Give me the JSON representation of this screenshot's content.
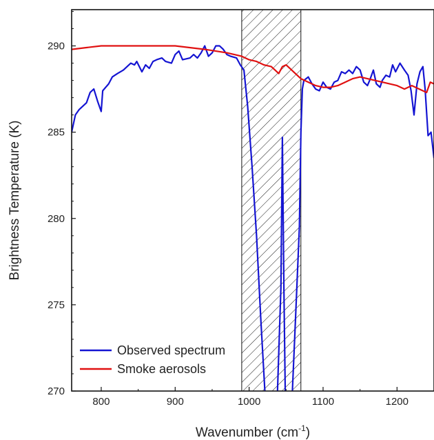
{
  "chart_data": {
    "type": "line",
    "xlabel": "Wavenumber (cm",
    "xlabel_sup": "-1",
    "xlabel_close": ")",
    "ylabel": "Brightness Temperature (K)",
    "xlim": [
      760,
      1250
    ],
    "ylim": [
      270,
      292.1
    ],
    "x_ticks": [
      800,
      900,
      1000,
      1100,
      1200
    ],
    "y_ticks": [
      270,
      275,
      280,
      285,
      290
    ],
    "x_tick_labels": [
      "800",
      "900",
      "1000",
      "1100",
      "1200"
    ],
    "y_tick_labels": [
      "270",
      "275",
      "280",
      "285",
      "290"
    ],
    "grid": false,
    "legend_position": "bottom-left",
    "shaded_band": {
      "x0": 990,
      "x1": 1070,
      "pattern": "diagonal-hatch"
    },
    "series": [
      {
        "name": "Observed spectrum",
        "color": "#1414d2",
        "points": [
          [
            760,
            285.0
          ],
          [
            765,
            286.0
          ],
          [
            770,
            286.3
          ],
          [
            780,
            286.7
          ],
          [
            785,
            287.3
          ],
          [
            790,
            287.5
          ],
          [
            795,
            286.8
          ],
          [
            800,
            286.2
          ],
          [
            802,
            287.4
          ],
          [
            810,
            287.8
          ],
          [
            815,
            288.2
          ],
          [
            822,
            288.4
          ],
          [
            830,
            288.6
          ],
          [
            835,
            288.8
          ],
          [
            840,
            289.0
          ],
          [
            845,
            288.9
          ],
          [
            848,
            289.1
          ],
          [
            855,
            288.5
          ],
          [
            860,
            288.9
          ],
          [
            865,
            288.7
          ],
          [
            870,
            289.1
          ],
          [
            875,
            289.2
          ],
          [
            882,
            289.3
          ],
          [
            887,
            289.1
          ],
          [
            895,
            289.0
          ],
          [
            900,
            289.5
          ],
          [
            905,
            289.7
          ],
          [
            910,
            289.2
          ],
          [
            920,
            289.3
          ],
          [
            925,
            289.5
          ],
          [
            930,
            289.3
          ],
          [
            935,
            289.6
          ],
          [
            940,
            290.0
          ],
          [
            945,
            289.4
          ],
          [
            950,
            289.6
          ],
          [
            955,
            290.0
          ],
          [
            960,
            290.0
          ],
          [
            965,
            289.8
          ],
          [
            970,
            289.5
          ],
          [
            975,
            289.4
          ],
          [
            983,
            289.3
          ],
          [
            988,
            288.9
          ],
          [
            993,
            288.6
          ],
          [
            998,
            286.5
          ],
          [
            1004,
            283.0
          ],
          [
            1010,
            279.0
          ],
          [
            1016,
            274.0
          ],
          [
            1022,
            269.5
          ],
          [
            1038,
            269.5
          ],
          [
            1043,
            276.0
          ],
          [
            1045,
            284.7
          ],
          [
            1047,
            276.0
          ],
          [
            1049,
            269.5
          ],
          [
            1058,
            269.5
          ],
          [
            1063,
            274.5
          ],
          [
            1068,
            279.5
          ],
          [
            1070,
            285.0
          ],
          [
            1072,
            287.5
          ],
          [
            1074,
            288.0
          ],
          [
            1080,
            288.2
          ],
          [
            1085,
            287.8
          ],
          [
            1090,
            287.5
          ],
          [
            1095,
            287.4
          ],
          [
            1100,
            287.9
          ],
          [
            1105,
            287.6
          ],
          [
            1110,
            287.5
          ],
          [
            1115,
            287.9
          ],
          [
            1120,
            288.0
          ],
          [
            1125,
            288.5
          ],
          [
            1130,
            288.4
          ],
          [
            1135,
            288.6
          ],
          [
            1140,
            288.4
          ],
          [
            1145,
            288.8
          ],
          [
            1150,
            288.6
          ],
          [
            1155,
            287.9
          ],
          [
            1160,
            287.7
          ],
          [
            1163,
            288.0
          ],
          [
            1168,
            288.6
          ],
          [
            1172,
            287.8
          ],
          [
            1177,
            287.6
          ],
          [
            1180,
            288.0
          ],
          [
            1185,
            288.3
          ],
          [
            1190,
            288.2
          ],
          [
            1194,
            288.9
          ],
          [
            1198,
            288.5
          ],
          [
            1204,
            289.0
          ],
          [
            1210,
            288.6
          ],
          [
            1215,
            288.3
          ],
          [
            1219,
            287.4
          ],
          [
            1223,
            286.0
          ],
          [
            1227,
            287.8
          ],
          [
            1231,
            288.5
          ],
          [
            1235,
            288.8
          ],
          [
            1238,
            287.5
          ],
          [
            1242,
            284.8
          ],
          [
            1246,
            285.0
          ],
          [
            1250,
            283.5
          ]
        ]
      },
      {
        "name": "Smoke aerosols",
        "color": "#e01010",
        "points": [
          [
            760,
            289.8
          ],
          [
            780,
            289.9
          ],
          [
            800,
            290.0
          ],
          [
            850,
            290.0
          ],
          [
            900,
            290.0
          ],
          [
            940,
            289.8
          ],
          [
            970,
            289.6
          ],
          [
            990,
            289.4
          ],
          [
            1000,
            289.2
          ],
          [
            1010,
            289.1
          ],
          [
            1020,
            288.9
          ],
          [
            1030,
            288.8
          ],
          [
            1040,
            288.4
          ],
          [
            1045,
            288.8
          ],
          [
            1050,
            288.9
          ],
          [
            1055,
            288.7
          ],
          [
            1060,
            288.5
          ],
          [
            1070,
            288.1
          ],
          [
            1080,
            287.9
          ],
          [
            1090,
            287.7
          ],
          [
            1100,
            287.6
          ],
          [
            1110,
            287.6
          ],
          [
            1120,
            287.7
          ],
          [
            1130,
            287.9
          ],
          [
            1140,
            288.1
          ],
          [
            1150,
            288.2
          ],
          [
            1160,
            288.1
          ],
          [
            1170,
            288.0
          ],
          [
            1180,
            287.9
          ],
          [
            1190,
            287.8
          ],
          [
            1200,
            287.7
          ],
          [
            1210,
            287.5
          ],
          [
            1220,
            287.7
          ],
          [
            1230,
            287.5
          ],
          [
            1240,
            287.3
          ],
          [
            1245,
            287.9
          ],
          [
            1250,
            287.8
          ]
        ]
      }
    ]
  }
}
